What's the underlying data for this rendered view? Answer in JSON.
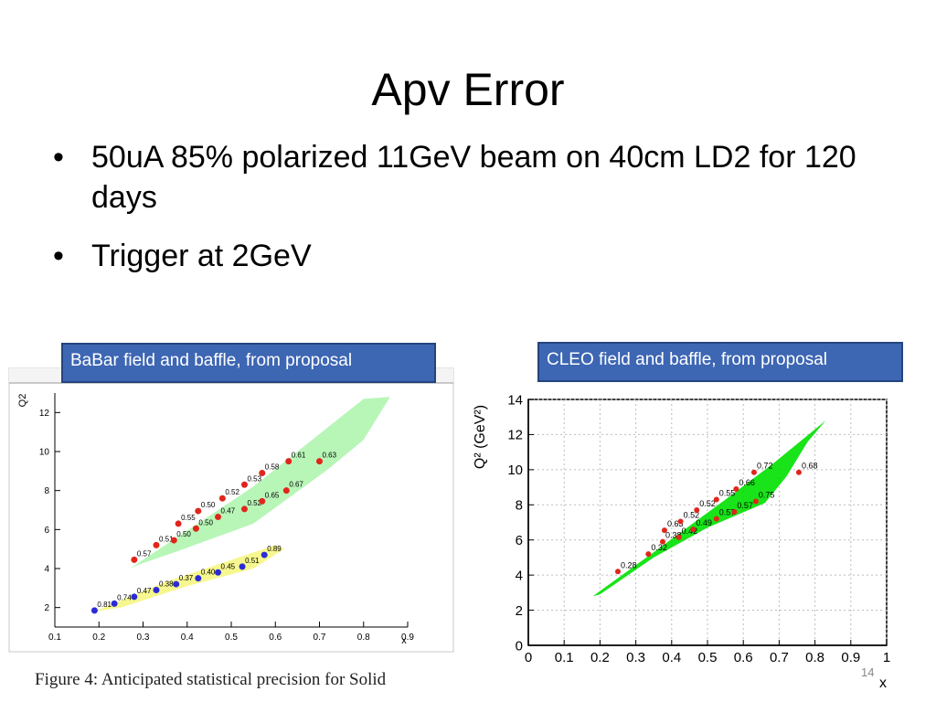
{
  "slide": {
    "title": "Apv Error",
    "bullets": [
      {
        "symbol": "•",
        "text": "50uA 85% polarized 11GeV beam on 40cm LD2 for 120 days"
      },
      {
        "symbol": "•",
        "text": "Trigger at 2GeV"
      }
    ],
    "caption": "Figure 4:  Anticipated statistical precision for Solid",
    "slide_number": "14",
    "colors": {
      "label_bg": "#3d66b3",
      "label_text": "#ffffff",
      "red_points": "#e0261c",
      "blue_points": "#2b2bd6",
      "green_region": "#00e000",
      "yellow_region": "#f4f46a"
    }
  },
  "chart_data": [
    {
      "type": "scatter",
      "label": "BaBar field and baffle, from proposal",
      "xlabel": "x",
      "ylabel": "Q2",
      "xlim": [
        0.1,
        0.9
      ],
      "ylim": [
        1,
        13
      ],
      "xticks": [
        "0.1",
        "0.2",
        "0.3",
        "0.4",
        "0.5",
        "0.6",
        "0.7",
        "0.8",
        "0.9"
      ],
      "yticks": [
        "2",
        "4",
        "6",
        "8",
        "10",
        "12"
      ],
      "grid": false,
      "series": [
        {
          "color": "#e0261c",
          "points": [
            {
              "x": 0.28,
              "y": 4.45,
              "label": "0.57"
            },
            {
              "x": 0.33,
              "y": 5.2,
              "label": "0.51"
            },
            {
              "x": 0.37,
              "y": 5.45,
              "label": "0.50"
            },
            {
              "x": 0.38,
              "y": 6.3,
              "label": "0.55"
            },
            {
              "x": 0.42,
              "y": 6.05,
              "label": "0.50"
            },
            {
              "x": 0.425,
              "y": 6.95,
              "label": "0.50"
            },
            {
              "x": 0.47,
              "y": 6.65,
              "label": "0.47"
            },
            {
              "x": 0.48,
              "y": 7.6,
              "label": "0.52"
            },
            {
              "x": 0.53,
              "y": 7.05,
              "label": "0.52"
            },
            {
              "x": 0.53,
              "y": 8.3,
              "label": "0.53"
            },
            {
              "x": 0.57,
              "y": 7.45,
              "label": "0.65"
            },
            {
              "x": 0.57,
              "y": 8.9,
              "label": "0.58"
            },
            {
              "x": 0.625,
              "y": 8.0,
              "label": "0.67"
            },
            {
              "x": 0.63,
              "y": 9.5,
              "label": "0.61"
            },
            {
              "x": 0.7,
              "y": 9.5,
              "label": "0.63"
            }
          ]
        },
        {
          "color": "#2b2bd6",
          "points": [
            {
              "x": 0.19,
              "y": 1.85,
              "label": "0.81"
            },
            {
              "x": 0.235,
              "y": 2.2,
              "label": "0.74"
            },
            {
              "x": 0.28,
              "y": 2.55,
              "label": "0.47"
            },
            {
              "x": 0.33,
              "y": 2.9,
              "label": "0.38"
            },
            {
              "x": 0.375,
              "y": 3.2,
              "label": "0.37"
            },
            {
              "x": 0.425,
              "y": 3.5,
              "label": "0.40"
            },
            {
              "x": 0.47,
              "y": 3.8,
              "label": "0.45"
            },
            {
              "x": 0.525,
              "y": 4.1,
              "label": "0.51"
            },
            {
              "x": 0.575,
              "y": 4.7,
              "label": "0.89"
            }
          ]
        }
      ]
    },
    {
      "type": "scatter",
      "label": "CLEO field and baffle, from proposal",
      "xlabel": "x",
      "ylabel": "Q² (GeV²)",
      "xlim": [
        0,
        1
      ],
      "ylim": [
        0,
        14
      ],
      "xticks": [
        "0",
        "0.1",
        "0.2",
        "0.3",
        "0.4",
        "0.5",
        "0.6",
        "0.7",
        "0.8",
        "0.9",
        "1"
      ],
      "yticks": [
        "0",
        "2",
        "4",
        "6",
        "8",
        "10",
        "12",
        "14"
      ],
      "grid": true,
      "series": [
        {
          "color": "#e0261c",
          "points": [
            {
              "x": 0.25,
              "y": 4.2,
              "label": "0.28"
            },
            {
              "x": 0.335,
              "y": 5.2,
              "label": "0.32"
            },
            {
              "x": 0.375,
              "y": 5.9,
              "label": "0.38"
            },
            {
              "x": 0.38,
              "y": 6.55,
              "label": "0.63"
            },
            {
              "x": 0.42,
              "y": 6.15,
              "label": "0.42"
            },
            {
              "x": 0.425,
              "y": 7.05,
              "label": "0.52"
            },
            {
              "x": 0.46,
              "y": 6.6,
              "label": "0.49"
            },
            {
              "x": 0.47,
              "y": 7.7,
              "label": "0.52"
            },
            {
              "x": 0.525,
              "y": 7.2,
              "label": "0.57"
            },
            {
              "x": 0.525,
              "y": 8.3,
              "label": "0.55"
            },
            {
              "x": 0.575,
              "y": 7.6,
              "label": "0.57"
            },
            {
              "x": 0.58,
              "y": 8.9,
              "label": "0.66"
            },
            {
              "x": 0.635,
              "y": 8.2,
              "label": "0.75"
            },
            {
              "x": 0.63,
              "y": 9.85,
              "label": "0.72"
            },
            {
              "x": 0.755,
              "y": 9.85,
              "label": "0.68"
            }
          ]
        }
      ]
    }
  ]
}
